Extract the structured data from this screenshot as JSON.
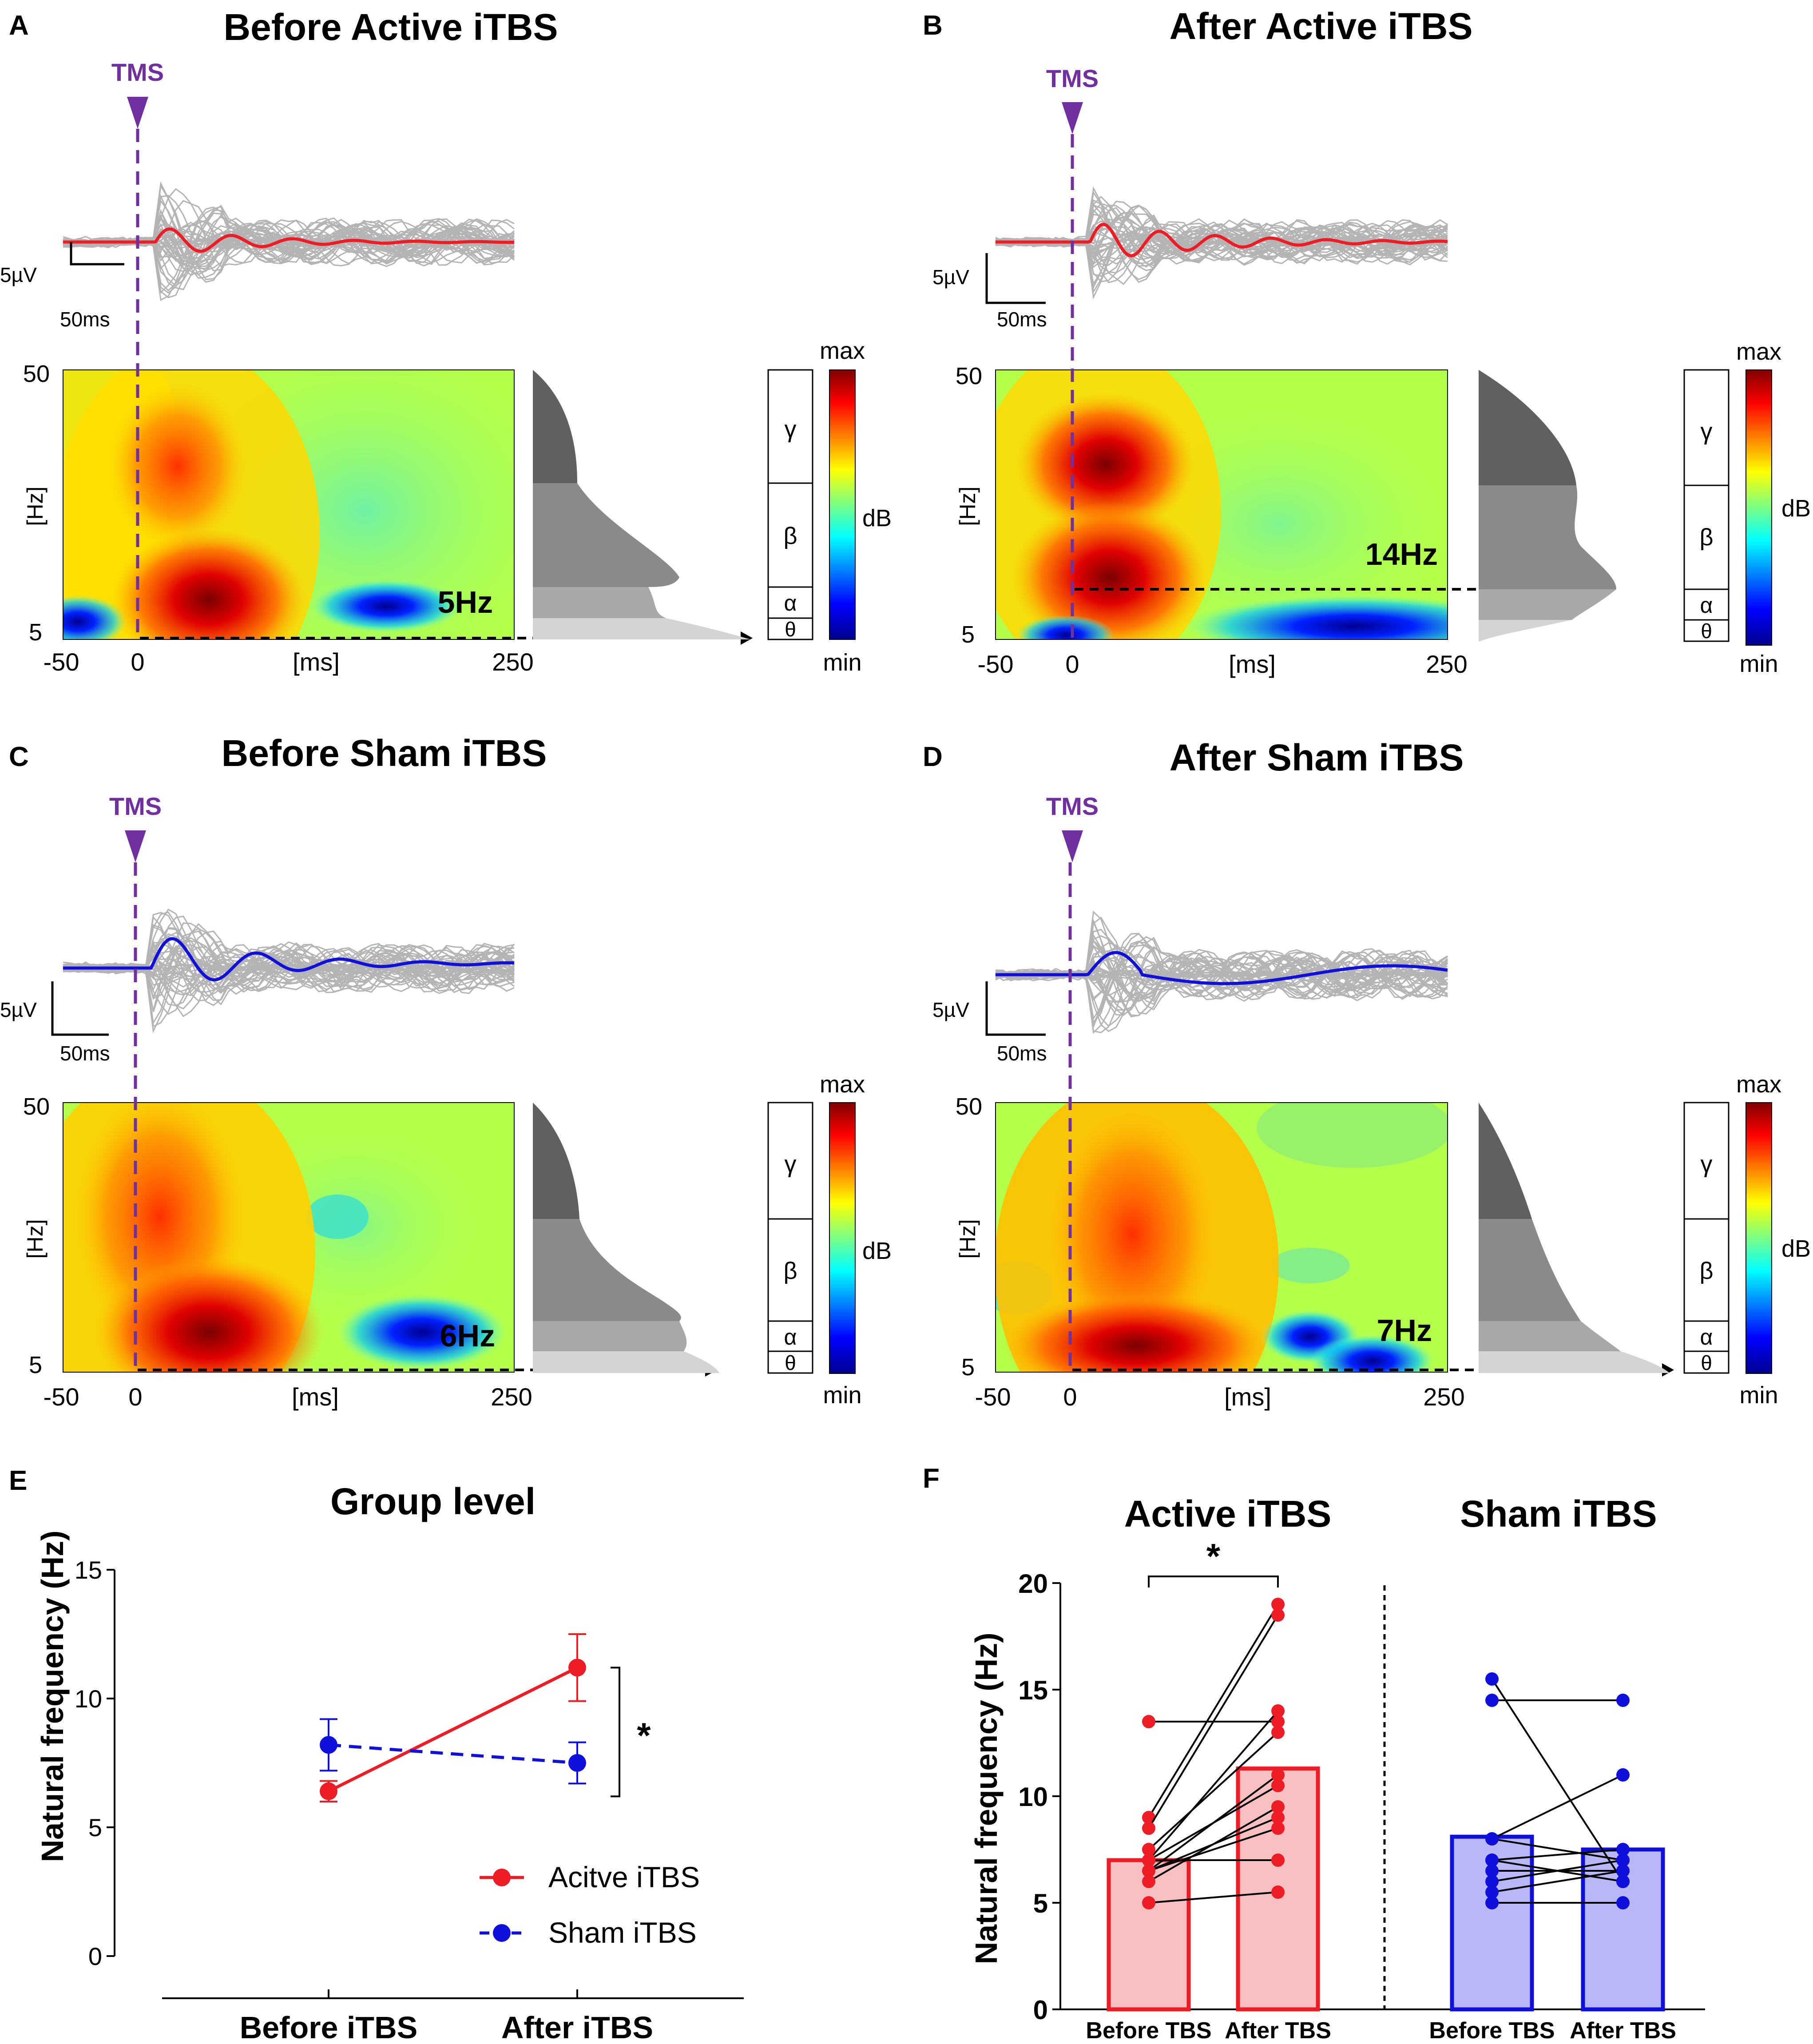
{
  "colors": {
    "tms": "#7030a0",
    "active": "#ee1c24",
    "sham": "#1010dd",
    "trace_gray": "#b4b4b4",
    "active_fill": "#f8c0c0",
    "sham_fill": "#b8b8f8"
  },
  "icons": {
    "tms_marker": "triangle-down-icon",
    "arrow": "dashed-arrow-icon"
  },
  "colorbar": {
    "max": "max",
    "min": "min",
    "unit": "dB"
  },
  "bands": [
    "γ",
    "β",
    "α",
    "θ"
  ],
  "chart_data": [
    {
      "type": "heatmap",
      "panel": "A",
      "title": "Before Active iTBS",
      "marker": "TMS",
      "scale_v": "5µV",
      "scale_t": "50ms",
      "ylabel": "[Hz]",
      "xlabel": "[ms]",
      "y_ticks": [
        "50",
        "5"
      ],
      "x_ticks": [
        "-50",
        "0",
        "250"
      ],
      "xlim": [
        -50,
        250
      ],
      "ylim": [
        5,
        50
      ],
      "natural_frequency": "5Hz",
      "trace_color": "active"
    },
    {
      "type": "heatmap",
      "panel": "B",
      "title": "After Active iTBS",
      "marker": "TMS",
      "scale_v": "5µV",
      "scale_t": "50ms",
      "ylabel": "[Hz]",
      "xlabel": "[ms]",
      "y_ticks": [
        "50",
        "5"
      ],
      "x_ticks": [
        "-50",
        "0",
        "250"
      ],
      "xlim": [
        -50,
        250
      ],
      "ylim": [
        5,
        50
      ],
      "natural_frequency": "14Hz",
      "trace_color": "active"
    },
    {
      "type": "heatmap",
      "panel": "C",
      "title": "Before Sham iTBS",
      "marker": "TMS",
      "scale_v": "5µV",
      "scale_t": "50ms",
      "ylabel": "[Hz]",
      "xlabel": "[ms]",
      "y_ticks": [
        "50",
        "5"
      ],
      "x_ticks": [
        "-50",
        "0",
        "250"
      ],
      "xlim": [
        -50,
        250
      ],
      "ylim": [
        5,
        50
      ],
      "natural_frequency": "6Hz",
      "trace_color": "sham"
    },
    {
      "type": "heatmap",
      "panel": "D",
      "title": "After Sham iTBS",
      "marker": "TMS",
      "scale_v": "5µV",
      "scale_t": "50ms",
      "ylabel": "[Hz]",
      "xlabel": "[ms]",
      "y_ticks": [
        "50",
        "5"
      ],
      "x_ticks": [
        "-50",
        "0",
        "250"
      ],
      "xlim": [
        -50,
        250
      ],
      "ylim": [
        5,
        50
      ],
      "natural_frequency": "7Hz",
      "trace_color": "sham"
    },
    {
      "type": "line",
      "panel": "E",
      "title": "Group level",
      "ylabel": "Natural frequency (Hz)",
      "categories": [
        "Before iTBS",
        "After iTBS"
      ],
      "ylim": [
        0,
        15
      ],
      "y_ticks": [
        0,
        5,
        10,
        15
      ],
      "series": [
        {
          "name": "Acitve iTBS",
          "color": "active",
          "dash": false,
          "values": [
            6.4,
            11.2
          ],
          "err": [
            0.4,
            1.3
          ]
        },
        {
          "name": "Sham iTBS",
          "color": "sham",
          "dash": true,
          "values": [
            8.2,
            7.5
          ],
          "err": [
            1.0,
            0.8
          ]
        }
      ],
      "significance": "*"
    },
    {
      "type": "bar",
      "panel": "F",
      "ylabel": "Natural frequency (Hz)",
      "ylim": [
        0,
        20
      ],
      "y_ticks": [
        0,
        5,
        10,
        15,
        20
      ],
      "groups": [
        {
          "title": "Active iTBS",
          "color": "active",
          "categories": [
            "Before TBS",
            "After TBS"
          ],
          "means": [
            7.0,
            11.3
          ],
          "pairs": [
            [
              13.5,
              13.5
            ],
            [
              9.0,
              19.0
            ],
            [
              8.5,
              18.5
            ],
            [
              7.0,
              14.0
            ],
            [
              7.5,
              13.0
            ],
            [
              6.5,
              11.0
            ],
            [
              7.0,
              10.5
            ],
            [
              6.0,
              9.5
            ],
            [
              6.5,
              8.5
            ],
            [
              7.0,
              7.0
            ],
            [
              5.0,
              5.5
            ],
            [
              6.5,
              9.0
            ]
          ],
          "significance": "*"
        },
        {
          "title": "Sham iTBS",
          "color": "sham",
          "categories": [
            "Before TBS",
            "After TBS"
          ],
          "means": [
            8.1,
            7.5
          ],
          "pairs": [
            [
              15.5,
              6.0
            ],
            [
              14.5,
              14.5
            ],
            [
              8.0,
              7.0
            ],
            [
              8.0,
              11.0
            ],
            [
              7.0,
              7.5
            ],
            [
              6.5,
              6.5
            ],
            [
              7.0,
              6.0
            ],
            [
              5.0,
              5.0
            ],
            [
              5.5,
              6.5
            ],
            [
              6.0,
              7.0
            ]
          ]
        }
      ]
    }
  ]
}
